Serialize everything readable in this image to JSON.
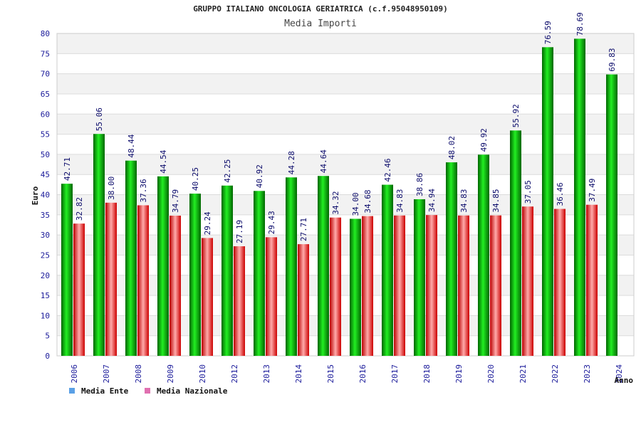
{
  "chart_data": {
    "type": "bar",
    "title": "GRUPPO ITALIANO ONCOLOGIA GERIATRICA (c.f.95048950109)",
    "subtitle": "Media Importi",
    "ylabel": "Euro",
    "xlabel": "Anno",
    "ylim": [
      0,
      80
    ],
    "yticks": [
      0,
      5,
      10,
      15,
      20,
      25,
      30,
      35,
      40,
      45,
      50,
      55,
      60,
      65,
      70,
      75,
      80
    ],
    "categories": [
      "2006",
      "2007",
      "2008",
      "2009",
      "2010",
      "2012",
      "2013",
      "2014",
      "2015",
      "2016",
      "2017",
      "2018",
      "2019",
      "2020",
      "2021",
      "2022",
      "2023",
      "2024"
    ],
    "series": [
      {
        "name": "Media Ente",
        "color": "#00bb00",
        "legend_color": "#5aa0e6",
        "values": [
          42.71,
          55.06,
          48.44,
          44.54,
          40.25,
          42.25,
          40.92,
          44.28,
          44.64,
          34.0,
          42.46,
          38.86,
          48.02,
          49.92,
          55.92,
          76.59,
          78.69,
          69.83
        ],
        "labels": [
          "42.71",
          "55.06",
          "48.44",
          "44.54",
          "40.25",
          "42.25",
          "40.92",
          "44.28",
          "44.64",
          "34.00",
          "42.46",
          "38.86",
          "48.02",
          "49.92",
          "55.92",
          "76.59",
          "78.69",
          "69.83"
        ]
      },
      {
        "name": "Media Nazionale",
        "color": "#dd1111",
        "legend_color": "#e070b0",
        "values": [
          32.82,
          38.0,
          37.36,
          34.79,
          29.24,
          27.19,
          29.43,
          27.71,
          34.32,
          34.68,
          34.83,
          34.94,
          34.83,
          34.85,
          37.05,
          36.46,
          37.49,
          null
        ],
        "labels": [
          "32.82",
          "38.00",
          "37.36",
          "34.79",
          "29.24",
          "27.19",
          "29.43",
          "27.71",
          "34.32",
          "34.68",
          "34.83",
          "34.94",
          "34.83",
          "34.85",
          "37.05",
          "36.46",
          "37.49",
          null
        ]
      }
    ],
    "grid": true,
    "legend": "bottom-left"
  }
}
